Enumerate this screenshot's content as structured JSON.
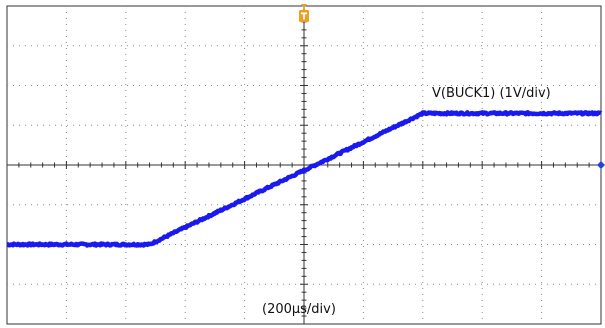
{
  "chart_data": {
    "type": "line",
    "title": "",
    "xlabel": "",
    "ylabel": "",
    "grid": true,
    "divisions": {
      "x": 10,
      "y": 8
    },
    "trace_label": "V(BUCK1) (1V/div)",
    "timebase_label": "(200µs/div)",
    "xlim": [
      -1000,
      1000
    ],
    "ylim": [
      -4,
      4
    ],
    "x_unit": "µs",
    "y_unit": "V",
    "series": [
      {
        "name": "V(BUCK1) (1V/div)",
        "x": [
          -1000,
          -520,
          400,
          1000
        ],
        "y": [
          -2.0,
          -2.0,
          1.3,
          1.3
        ]
      }
    ],
    "colors": {
      "trace": "#1a1aee",
      "trigger_marker": "#f0a020",
      "ground_marker": "#2244dd",
      "grid": "#8a8a8a",
      "frame": "#333333"
    }
  }
}
